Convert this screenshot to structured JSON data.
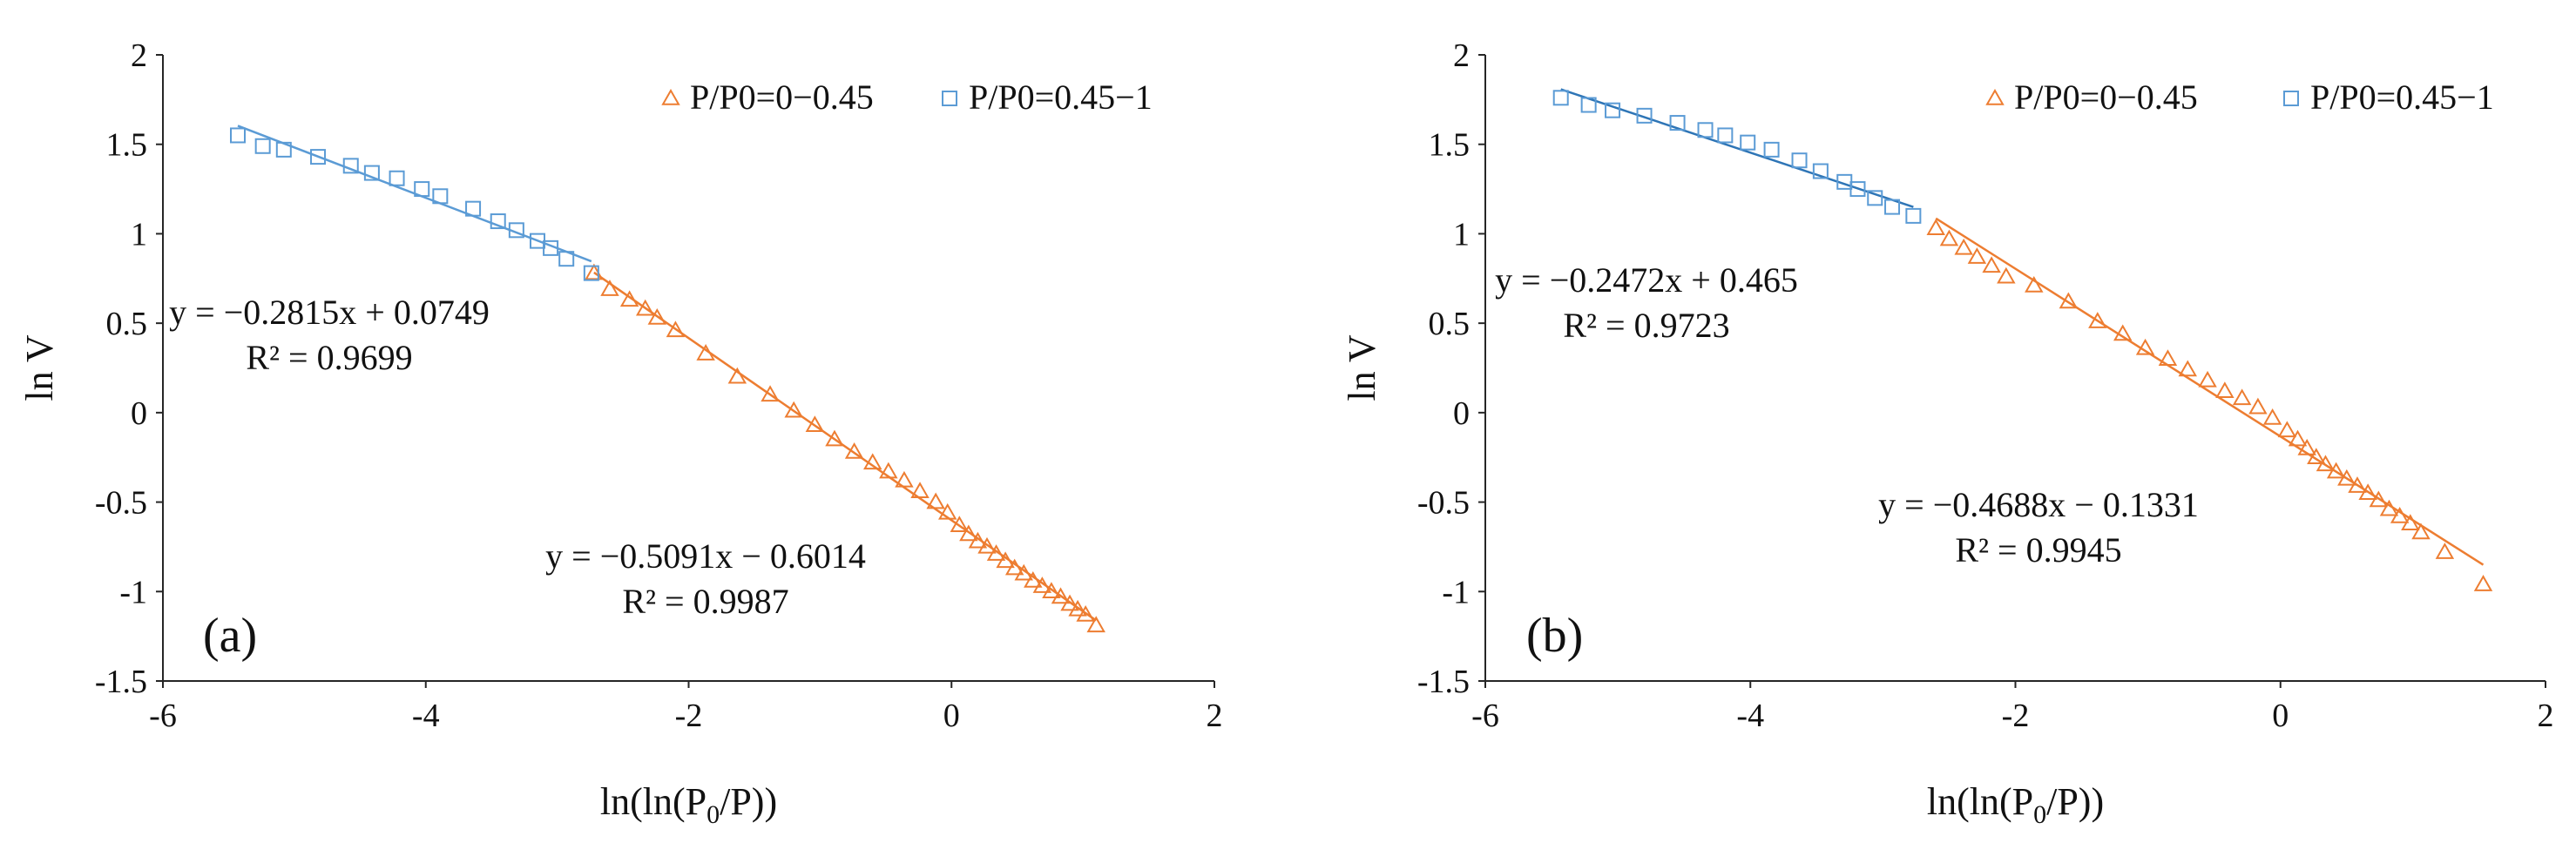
{
  "colors": {
    "orange": "#ED7D31",
    "blue": "#5B9BD5",
    "blue_fit": "#2E75B6",
    "axis": "#262626"
  },
  "chart_data": [
    {
      "type": "scatter",
      "panel_label": "(a)",
      "xlabel": "ln(ln(P0/P))",
      "xlabel_parts": {
        "a": "ln(ln(P",
        "sub": "0",
        "b": "/P))"
      },
      "ylabel": "ln V",
      "xlim": [
        -6,
        2
      ],
      "ylim": [
        -1.5,
        2
      ],
      "xticks": [
        -6,
        -4,
        -2,
        0,
        2
      ],
      "xtick_labels": [
        "-6",
        "-4",
        "-2",
        "0",
        "2"
      ],
      "yticks": [
        -1.5,
        -1,
        -0.5,
        0,
        0.5,
        1,
        1.5,
        2
      ],
      "ytick_labels": [
        "-1.5",
        "-1",
        "-0.5",
        "0",
        "0.5",
        "1",
        "1.5",
        "2"
      ],
      "legend_position": "top-right",
      "series": [
        {
          "name": "P/P0=0−0.45",
          "marker": "triangle",
          "color": "#ED7D31",
          "x": [
            -2.72,
            -2.6,
            -2.45,
            -2.33,
            -2.24,
            -2.1,
            -1.87,
            -1.63,
            -1.38,
            -1.2,
            -1.04,
            -0.89,
            -0.74,
            -0.6,
            -0.48,
            -0.36,
            -0.24,
            -0.12,
            -0.03,
            0.06,
            0.13,
            0.2,
            0.27,
            0.34,
            0.41,
            0.48,
            0.55,
            0.62,
            0.69,
            0.76,
            0.83,
            0.9,
            0.96,
            1.02,
            1.1
          ],
          "y": [
            0.78,
            0.69,
            0.63,
            0.58,
            0.53,
            0.46,
            0.33,
            0.2,
            0.1,
            0.01,
            -0.07,
            -0.15,
            -0.22,
            -0.28,
            -0.33,
            -0.38,
            -0.44,
            -0.5,
            -0.56,
            -0.63,
            -0.68,
            -0.72,
            -0.75,
            -0.79,
            -0.83,
            -0.87,
            -0.9,
            -0.94,
            -0.97,
            -1.0,
            -1.03,
            -1.07,
            -1.1,
            -1.13,
            -1.19
          ]
        },
        {
          "name": "P/P0=0.45−1",
          "marker": "square",
          "color": "#5B9BD5",
          "x": [
            -5.43,
            -5.24,
            -5.08,
            -4.82,
            -4.57,
            -4.41,
            -4.22,
            -4.03,
            -3.89,
            -3.64,
            -3.45,
            -3.31,
            -3.15,
            -3.05,
            -2.93,
            -2.74
          ],
          "y": [
            1.55,
            1.49,
            1.47,
            1.43,
            1.38,
            1.34,
            1.31,
            1.25,
            1.21,
            1.14,
            1.07,
            1.02,
            0.96,
            0.92,
            0.86,
            0.78
          ]
        }
      ],
      "trendlines": [
        {
          "series": "P/P0=0−0.45",
          "slope": -0.5091,
          "intercept": -0.6014,
          "x_range": [
            -2.72,
            1.1
          ],
          "color": "#ED7D31"
        },
        {
          "series": "P/P0=0.45−1",
          "slope": -0.2815,
          "intercept": 0.0749,
          "x_range": [
            -5.43,
            -2.74
          ],
          "color": "#5B9BD5"
        }
      ],
      "annotations": [
        {
          "line1": "y = −0.2815x + 0.0749",
          "line2": "R² = 0.9699"
        },
        {
          "line1": "y = −0.5091x − 0.6014",
          "line2": "R² = 0.9987"
        }
      ]
    },
    {
      "type": "scatter",
      "panel_label": "(b)",
      "xlabel": "ln(ln(P0/P))",
      "xlabel_parts": {
        "a": "ln(ln(P",
        "sub": "0",
        "b": "/P))"
      },
      "ylabel": "ln V",
      "xlim": [
        -6,
        2
      ],
      "ylim": [
        -1.5,
        2
      ],
      "xticks": [
        -6,
        -4,
        -2,
        0,
        2
      ],
      "xtick_labels": [
        "-6",
        "-4",
        "-2",
        "0",
        "2"
      ],
      "yticks": [
        -1.5,
        -1,
        -0.5,
        0,
        0.5,
        1,
        1.5,
        2
      ],
      "ytick_labels": [
        "-1.5",
        "-1",
        "-0.5",
        "0",
        "0.5",
        "1",
        "1.5",
        "2"
      ],
      "legend_position": "top-right",
      "series": [
        {
          "name": "P/P0=0−0.45",
          "marker": "triangle",
          "color": "#ED7D31",
          "x": [
            -2.6,
            -2.5,
            -2.39,
            -2.29,
            -2.18,
            -2.07,
            -1.86,
            -1.6,
            -1.38,
            -1.19,
            -1.02,
            -0.85,
            -0.7,
            -0.55,
            -0.42,
            -0.29,
            -0.17,
            -0.06,
            0.05,
            0.13,
            0.2,
            0.27,
            0.34,
            0.42,
            0.5,
            0.58,
            0.66,
            0.74,
            0.82,
            0.9,
            0.98,
            1.06,
            1.24,
            1.53
          ],
          "y": [
            1.03,
            0.97,
            0.92,
            0.87,
            0.82,
            0.76,
            0.71,
            0.62,
            0.51,
            0.44,
            0.36,
            0.3,
            0.24,
            0.18,
            0.12,
            0.08,
            0.03,
            -0.03,
            -0.1,
            -0.15,
            -0.2,
            -0.25,
            -0.29,
            -0.33,
            -0.37,
            -0.41,
            -0.45,
            -0.49,
            -0.54,
            -0.58,
            -0.62,
            -0.67,
            -0.78,
            -0.96
          ]
        },
        {
          "name": "P/P0=0.45−1",
          "marker": "square",
          "color": "#5B9BD5",
          "x": [
            -5.43,
            -5.22,
            -5.04,
            -4.8,
            -4.55,
            -4.34,
            -4.19,
            -4.02,
            -3.84,
            -3.63,
            -3.47,
            -3.29,
            -3.19,
            -3.06,
            -2.93,
            -2.77
          ],
          "y": [
            1.76,
            1.72,
            1.69,
            1.66,
            1.62,
            1.58,
            1.55,
            1.51,
            1.47,
            1.41,
            1.35,
            1.29,
            1.25,
            1.2,
            1.15,
            1.1
          ]
        }
      ],
      "trendlines": [
        {
          "series": "P/P0=0−0.45",
          "slope": -0.4688,
          "intercept": -0.1331,
          "x_range": [
            -2.6,
            1.53
          ],
          "color": "#ED7D31"
        },
        {
          "series": "P/P0=0.45−1",
          "slope": -0.2472,
          "intercept": 0.465,
          "x_range": [
            -5.43,
            -2.77
          ],
          "color": "#2E75B6"
        }
      ],
      "annotations": [
        {
          "line1": "y = −0.2472x + 0.465",
          "line2": "R² = 0.9723"
        },
        {
          "line1": "y = −0.4688x − 0.1331",
          "line2": "R² = 0.9945"
        }
      ]
    }
  ]
}
